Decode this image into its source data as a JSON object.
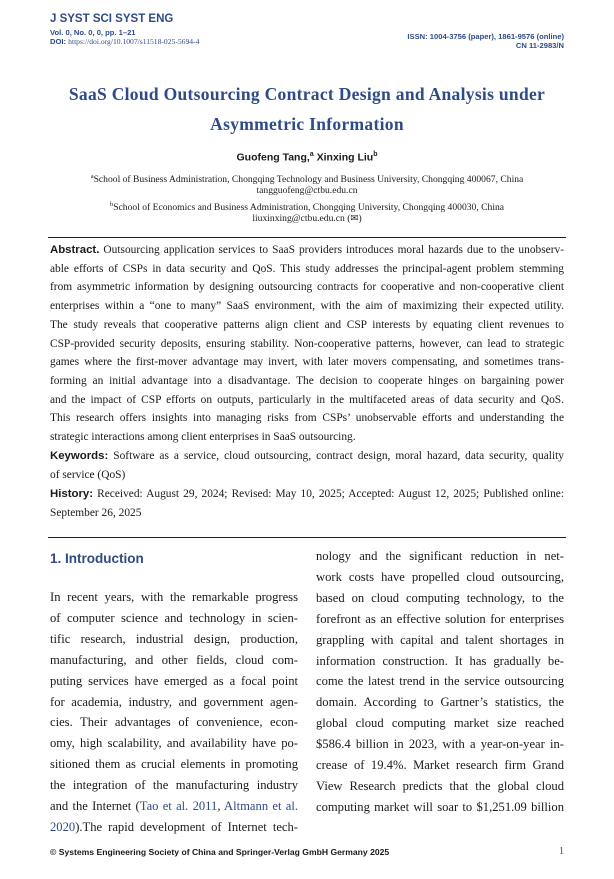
{
  "header": {
    "journal": "J SYST SCI SYST ENG",
    "volume": "Vol. 0, No. 0,  0, pp. 1–21",
    "doi_label": "DOI:",
    "doi": "https://doi.org/10.1007/s11518-025-5694-4",
    "issn": "ISSN: 1004-3756 (paper), 1861-9576 (online)",
    "cn": "CN 11-2983/N"
  },
  "title": {
    "line1": "SaaS Cloud Outsourcing Contract Design and Analysis under",
    "line2": "Asymmetric Information"
  },
  "authors": [
    {
      "name": "Guofeng Tang,",
      "mark": "a"
    },
    {
      "name": "Xinxing Liu",
      "mark": "b"
    }
  ],
  "affiliations": [
    {
      "mark": "a",
      "text": "School of Business Administration, Chongqing Technology and Business University, Chongqing 400067, China",
      "email": "tangguofeng@ctbu.edu.cn"
    },
    {
      "mark": "b",
      "text": "School of Economics and Business Administration, Chongqing University, Chongqing 400030, China",
      "email": "liuxinxing@ctbu.edu.cn (✉)"
    }
  ],
  "abstract": {
    "label": "Abstract.",
    "lines": [
      " Outsourcing application services to SaaS providers introduces moral hazards due to the unobserv-",
      "able efforts of CSPs in data security and QoS. This study addresses the principal-agent problem stemming",
      "from asymmetric information by designing outsourcing contracts for cooperative and non-cooperative client",
      "enterprises within a “one to many” SaaS environment, with the aim of maximizing their expected utility.",
      "The study reveals that cooperative patterns align client and CSP interests by equating client revenues to",
      "CSP-provided security deposits, ensuring stability. Non-cooperative patterns, however, can lead to strategic",
      "games where the first-mover advantage may invert, with later movers compensating, and sometimes trans-",
      "forming an initial advantage into a disadvantage.  The decision to cooperate hinges on bargaining power",
      "and the impact of CSP efforts on outputs, particularly in the multifaceted areas of data security and QoS.",
      "This research offers insights into managing risks from CSPs’ unobservable efforts and understanding the",
      "strategic interactions among client enterprises in SaaS outsourcing."
    ]
  },
  "keywords": {
    "label": "Keywords:",
    "lines": [
      " Software as a service, cloud outsourcing, contract design, moral hazard, data security, quality",
      "of service (QoS)"
    ]
  },
  "history": {
    "label": "History:",
    "lines": [
      " Received: August 29, 2024; Revised: May 10, 2025; Accepted: August 12, 2025; Published online:",
      "September 26, 2025"
    ]
  },
  "introduction": {
    "heading": "1. Introduction",
    "left_lines": [
      "In recent years, with the remarkable progress",
      "of computer science and technology in scien-",
      "tific research, industrial design, production,",
      "manufacturing, and other fields, cloud com-",
      "puting services have emerged as a focal point",
      "for academia, industry, and government agen-",
      "cies.  Their advantages of convenience, econ-",
      "omy, high scalability, and availability have po-",
      "sitioned them as crucial elements in promoting",
      "the integration of the manufacturing industry",
      [
        {
          "t": "and the Internet ("
        },
        {
          "t": "Tao et al. 2011",
          "cite": true
        },
        {
          "t": ", "
        },
        {
          "t": "Altmann et al.",
          "cite": true
        }
      ],
      [
        {
          "t": "2020",
          "cite": true
        },
        {
          "t": ").The rapid development of Internet tech-"
        }
      ]
    ],
    "right_lines": [
      "nology and the significant reduction in net-",
      "work costs have propelled cloud outsourcing,",
      "based on cloud computing technology, to the",
      "forefront as an effective solution for enterprises",
      "grappling with capital and talent shortages in",
      "information construction.  It has gradually be-",
      "come the latest trend in the service outsourcing",
      "domain.  According to Gartner’s statistics, the",
      "global cloud computing market size reached",
      "$586.4 billion in 2023, with a year-on-year in-",
      "crease of 19.4%.  Market research firm Grand",
      "View Research predicts that the global cloud",
      "computing market will soar to $1,251.09 billion"
    ]
  },
  "footer": {
    "copyright": "© Systems Engineering Society of China and Springer-Verlag GmbH Germany 2025",
    "page": "1"
  },
  "colors": {
    "accent": "#2e4a87",
    "text": "#1a1a1a"
  }
}
